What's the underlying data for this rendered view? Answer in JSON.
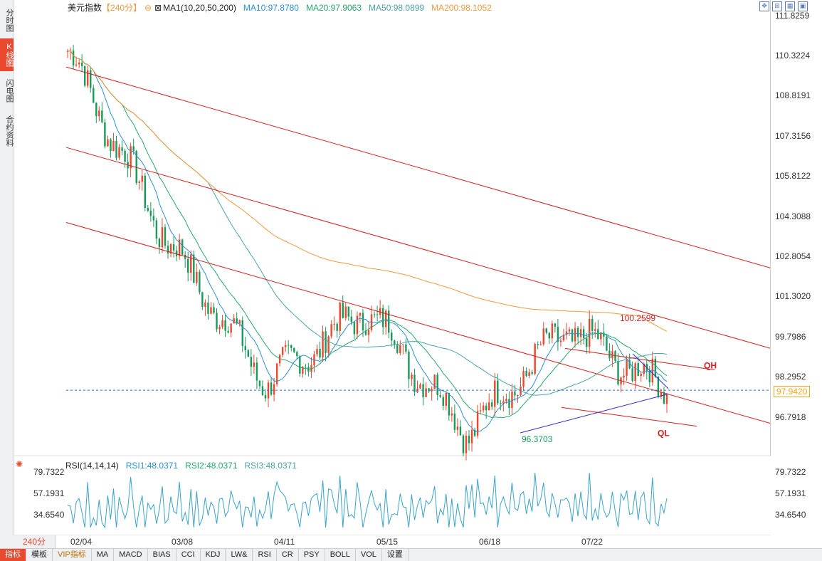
{
  "sidebar": {
    "tabs": [
      {
        "label": "分时图",
        "active": false
      },
      {
        "label": "K线图",
        "active": true
      },
      {
        "label": "闪电图",
        "active": false
      },
      {
        "label": "合约资料",
        "active": false
      }
    ]
  },
  "header": {
    "name": "美元指数",
    "period": "【240分】",
    "ma_params": "MA1(10,20,50,200)",
    "ma10": "MA10:97.8780",
    "ma20": "MA20:97.9063",
    "ma50": "MA50:98.0899",
    "ma200": "MA200:98.1052"
  },
  "price_axis": {
    "labels": [
      "111.8259",
      "110.3224",
      "108.8191",
      "107.3156",
      "105.8122",
      "104.3088",
      "102.8054",
      "101.3020",
      "99.7986",
      "98.2952",
      "96.7918"
    ],
    "current": "97.9420"
  },
  "annotations": {
    "high": "100.2599",
    "low": "96.3703",
    "qh": "QH",
    "ql": "QL"
  },
  "rsi": {
    "title": "RSI(14,14,14)",
    "rsi1": "RSI1:48.0371",
    "rsi2": "RSI2:48.0371",
    "rsi3": "RSI3:48.0371",
    "labels": [
      "79.7322",
      "57.1931",
      "34.6540"
    ]
  },
  "dates": [
    "02/04",
    "03/08",
    "04/11",
    "05/15",
    "06/18",
    "07/22"
  ],
  "period_button": "240分",
  "toolbar": [
    "指标",
    "模板",
    "VIP指标",
    "MA",
    "MACD",
    "BIAS",
    "CCI",
    "KDJ",
    "LW&",
    "RSI",
    "CR",
    "PSY",
    "BOLL",
    "VOL",
    "设置"
  ],
  "colors": {
    "up": "#e8492f",
    "down": "#1a9a5a",
    "ma10": "#2c8fd6",
    "ma20": "#27a86c",
    "ma50": "#4aa3a8",
    "ma200": "#f09a3e",
    "channel": "#d81e1e",
    "trend": "#2b2bd1",
    "rsi": "#3aa3c9"
  },
  "chart_data": {
    "type": "candlestick",
    "key_points": [
      {
        "x": "02/04",
        "y": 110.6
      },
      {
        "x": "03/08",
        "y": 103.5
      },
      {
        "x": "04/11",
        "y": 98.2
      },
      {
        "x": "05/15",
        "y": 101.0
      },
      {
        "x": "06/18",
        "y": 96.37
      },
      {
        "x": "07/22",
        "y": 100.26
      },
      {
        "x": "end",
        "y": 97.94
      }
    ],
    "ylim": [
      95.5,
      112.5
    ],
    "rsi_range": [
      25,
      85
    ]
  }
}
